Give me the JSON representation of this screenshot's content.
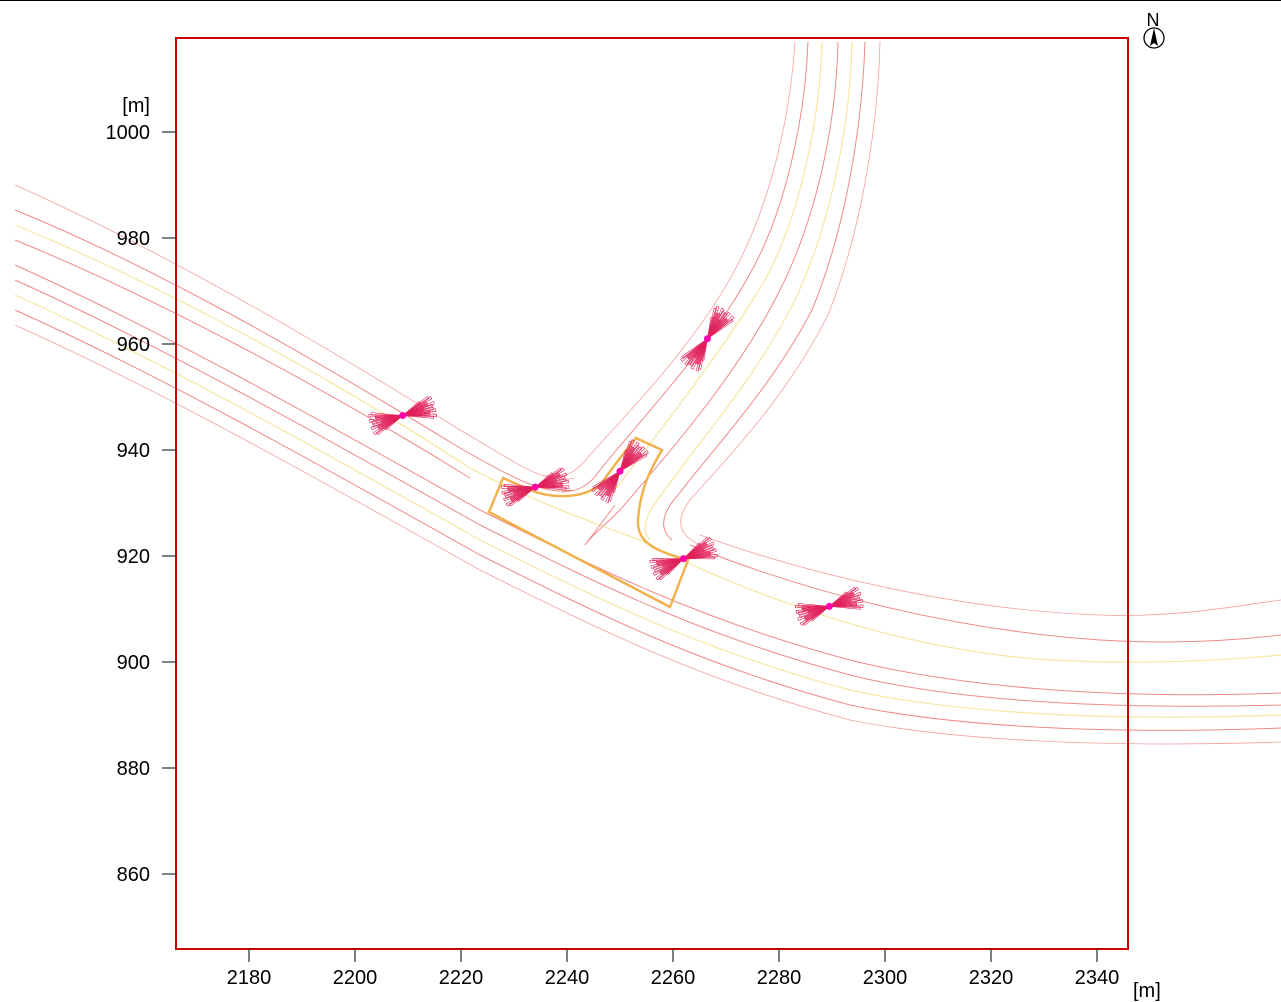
{
  "axes": {
    "x_label": "[m]",
    "y_label": "[m]",
    "x_ticks": [
      "2180",
      "2200",
      "2220",
      "2240",
      "2260",
      "2280",
      "2300",
      "2320",
      "2340"
    ],
    "y_ticks": [
      "1000",
      "980",
      "960",
      "940",
      "920",
      "900",
      "880",
      "860"
    ]
  },
  "compass": {
    "label": "N",
    "icon": "north-arrow-icon"
  },
  "colors": {
    "frame": "#cc0000",
    "road_edge": "#f08a8a",
    "road_center": "#f5e6a0",
    "junction_outline": "#f0b04a",
    "emission_fan": "#e0205a",
    "source_point": "#ff00aa"
  },
  "sources": [
    {
      "id": "s1",
      "x": 2209,
      "y": 946.5
    },
    {
      "id": "s2",
      "x": 2234,
      "y": 933
    },
    {
      "id": "s3",
      "x": 2250,
      "y": 936
    },
    {
      "id": "s4",
      "x": 2266.5,
      "y": 961
    },
    {
      "id": "s5",
      "x": 2262,
      "y": 919.5
    },
    {
      "id": "s6",
      "x": 2289.5,
      "y": 910.5
    }
  ]
}
